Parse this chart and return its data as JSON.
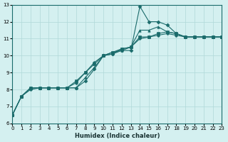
{
  "xlabel": "Humidex (Indice chaleur)",
  "ylabel": "",
  "bg_color": "#d4f0f0",
  "grid_color": "#b0d8d8",
  "line_color": "#1a6b6b",
  "xlim": [
    0,
    23
  ],
  "ylim": [
    6,
    13
  ],
  "xticks": [
    0,
    1,
    2,
    3,
    4,
    5,
    6,
    7,
    8,
    9,
    10,
    11,
    12,
    13,
    14,
    15,
    16,
    17,
    18,
    19,
    20,
    21,
    22,
    23
  ],
  "yticks": [
    6,
    7,
    8,
    9,
    10,
    11,
    12,
    13
  ],
  "series": [
    {
      "x": [
        0,
        1,
        2,
        3,
        4,
        5,
        6,
        7,
        8,
        9,
        10,
        11,
        12,
        13,
        14,
        15,
        16,
        17,
        18,
        19,
        20,
        21,
        22,
        23
      ],
      "y": [
        6.5,
        7.6,
        8.1,
        8.1,
        8.1,
        8.1,
        8.1,
        8.1,
        8.5,
        9.2,
        10.0,
        10.1,
        10.3,
        10.3,
        12.9,
        12.0,
        12.0,
        11.8,
        11.3,
        11.1,
        11.1,
        11.1,
        11.1,
        11.1
      ],
      "marker": "D"
    },
    {
      "x": [
        0,
        1,
        2,
        3,
        4,
        5,
        6,
        7,
        8,
        9,
        10,
        11,
        12,
        13,
        14,
        15,
        16,
        17,
        18,
        19,
        20,
        21,
        22,
        23
      ],
      "y": [
        6.5,
        7.6,
        8.1,
        8.1,
        8.1,
        8.1,
        8.1,
        8.1,
        8.7,
        9.3,
        10.0,
        10.2,
        10.3,
        10.5,
        11.5,
        11.5,
        11.7,
        11.4,
        11.3,
        11.1,
        11.1,
        11.1,
        11.1,
        11.1
      ],
      "marker": "^"
    },
    {
      "x": [
        0,
        1,
        2,
        3,
        4,
        5,
        6,
        7,
        8,
        9,
        10,
        11,
        12,
        13,
        14,
        15,
        16,
        17,
        18,
        19,
        20,
        21,
        22,
        23
      ],
      "y": [
        6.5,
        7.6,
        8.1,
        8.1,
        8.1,
        8.1,
        8.1,
        8.5,
        9.0,
        9.5,
        10.0,
        10.2,
        10.4,
        10.5,
        11.1,
        11.1,
        11.3,
        11.4,
        11.3,
        11.1,
        11.1,
        11.1,
        11.1,
        11.1
      ],
      "marker": "s"
    },
    {
      "x": [
        0,
        1,
        2,
        3,
        4,
        5,
        6,
        7,
        8,
        9,
        10,
        11,
        12,
        13,
        14,
        15,
        16,
        17,
        18,
        19,
        20,
        21,
        22,
        23
      ],
      "y": [
        6.5,
        7.6,
        8.0,
        8.1,
        8.1,
        8.1,
        8.1,
        8.4,
        9.0,
        9.6,
        10.0,
        10.1,
        10.4,
        10.5,
        11.0,
        11.1,
        11.2,
        11.3,
        11.2,
        11.1,
        11.1,
        11.1,
        11.1,
        11.1
      ],
      "marker": "o"
    }
  ]
}
